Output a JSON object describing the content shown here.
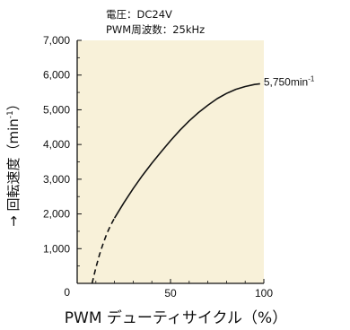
{
  "conditions": [
    "電圧：DC24V",
    "PWM周波数：25kHz"
  ],
  "chart_data": {
    "type": "line",
    "title": "",
    "xlabel": "PWM デューティサイクル（%）",
    "ylabel": "→ 回転速度（min",
    "ylabel_sup": "-1",
    "ylabel_close": "）",
    "xlim": [
      0,
      100
    ],
    "ylim": [
      0,
      7000
    ],
    "x_ticks": [
      0,
      50,
      100
    ],
    "y_ticks": [
      1000,
      2000,
      3000,
      4000,
      5000,
      6000,
      7000
    ],
    "y_tick_labels": [
      "1,000",
      "2,000",
      "3,000",
      "4,000",
      "5,000",
      "6,000",
      "7,000"
    ],
    "y_zero_label": "0",
    "x_tick_labels": [
      "",
      "50",
      "100"
    ],
    "grid": false,
    "plot_background": "#f8f1d9",
    "line_color": "#111111",
    "series": [
      {
        "style": "dashed",
        "x": [
          8,
          10,
          12,
          14,
          16,
          18,
          20
        ],
        "y": [
          0,
          450,
          840,
          1160,
          1450,
          1680,
          1880
        ]
      },
      {
        "style": "solid",
        "x": [
          20,
          25,
          30,
          35,
          40,
          45,
          50,
          55,
          60,
          65,
          70,
          75,
          80,
          85,
          90,
          95,
          98
        ],
        "y": [
          1880,
          2320,
          2730,
          3110,
          3460,
          3790,
          4110,
          4410,
          4680,
          4920,
          5130,
          5320,
          5470,
          5590,
          5670,
          5730,
          5750
        ]
      }
    ],
    "annotation": {
      "x": 98,
      "y": 5750,
      "text": "5,750min",
      "sup": "-1"
    }
  }
}
